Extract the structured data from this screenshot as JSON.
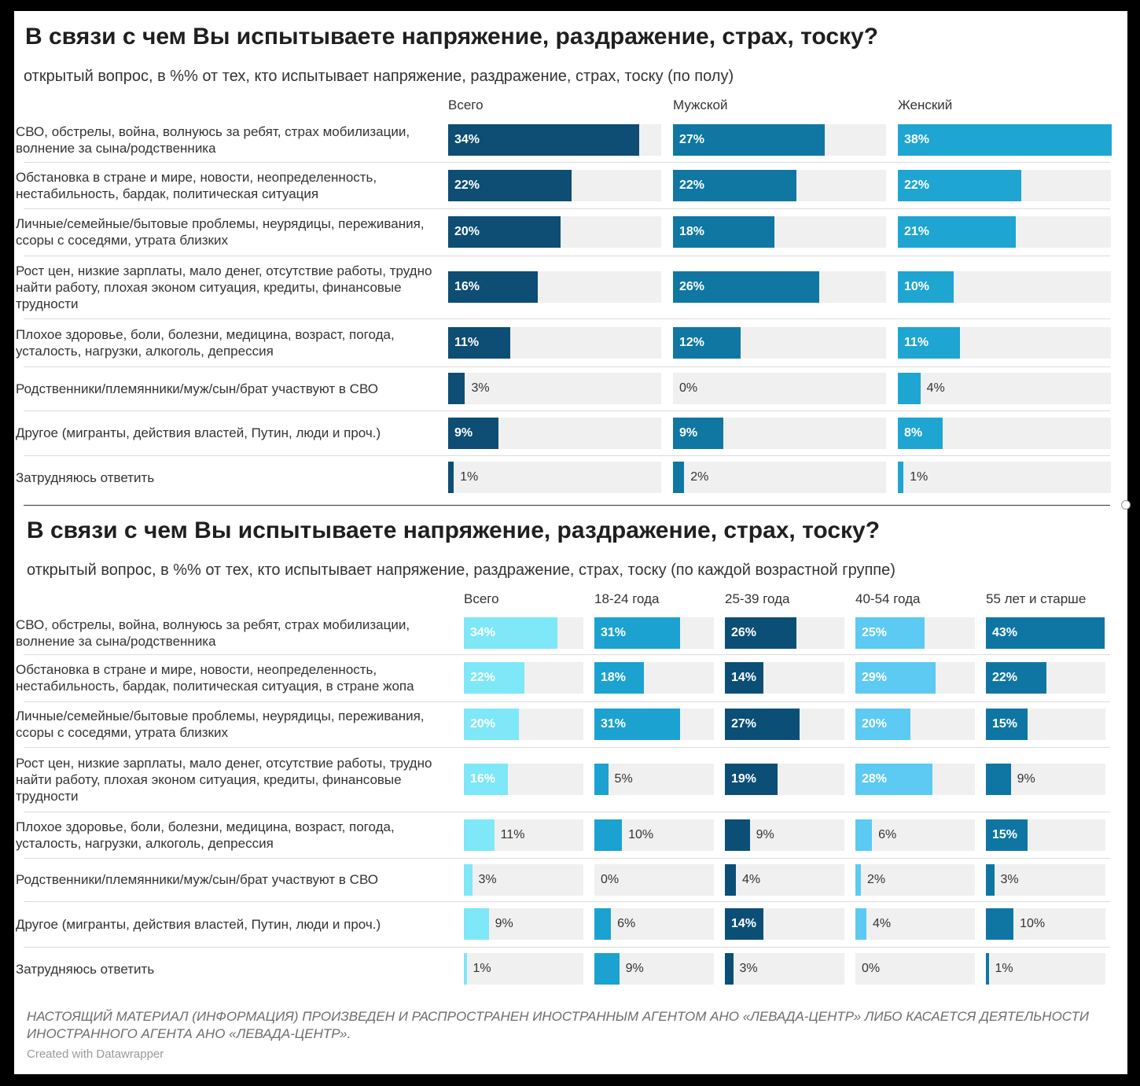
{
  "chart_data": [
    {
      "type": "bar",
      "title": "В связи с чем Вы испытываете напряжение, раздражение, страх, тоску?",
      "subtitle": "открытый вопрос, в %% от тех, кто испытывает напряжение, раздражение, страх, тоску (по полу)",
      "categories": [
        "СВО, обстрелы, война, волнуюсь за ребят, страх мобилизации, волнение за сына/родственника",
        "Обстановка в стране и мире, новости, неопределенность, нестабильность, бардак, политическая ситуация",
        "Личные/семейные/бытовые проблемы, неурядицы, переживания, ссоры с соседями, утрата близких",
        "Рост цен, низкие зарплаты, мало денег, отсутствие работы, трудно найти работу, плохая эконом ситуация, кредиты, финансовые трудности",
        "Плохое здоровье, боли, болезни, медицина, возраст, погода, усталость, нагрузки, алкоголь, депрессия",
        "Родственники/племянники/муж/сын/брат участвуют в СВО",
        "Другое (мигранты, действия властей, Путин, люди и проч.)",
        "Затрудняюсь ответить"
      ],
      "series": [
        {
          "name": "Всего",
          "color": "#0e4d74",
          "values": [
            34,
            22,
            20,
            16,
            11,
            3,
            9,
            1
          ]
        },
        {
          "name": "Мужской",
          "color": "#0f77a2",
          "values": [
            27,
            22,
            18,
            26,
            12,
            0,
            9,
            2
          ]
        },
        {
          "name": "Женский",
          "color": "#1ea5d2",
          "values": [
            38,
            22,
            21,
            10,
            11,
            4,
            8,
            1
          ]
        }
      ],
      "value_suffix": "%",
      "xlim": [
        0,
        38
      ]
    },
    {
      "type": "bar",
      "title": "В связи с чем Вы испытываете напряжение, раздражение, страх, тоску?",
      "subtitle": "открытый вопрос, в %% от тех, кто испытывает напряжение, раздражение, страх, тоску (по каждой возрастной группе)",
      "categories": [
        "СВО, обстрелы, война, волнуюсь за ребят, страх мобилизации, волнение за сына/родственника",
        "Обстановка в стране и мире, новости, неопределенность, нестабильность, бардак, политическая ситуация, в стране жопа",
        "Личные/семейные/бытовые проблемы, неурядицы, переживания, ссоры с соседями, утрата близких",
        "Рост цен, низкие зарплаты, мало денег, отсутствие работы, трудно найти работу, плохая эконом ситуация, кредиты, финансовые трудности",
        "Плохое здоровье, боли, болезни, медицина, возраст, погода, усталость, нагрузки, алкоголь, депрессия",
        "Родственники/племянники/муж/сын/брат участвуют в СВО",
        "Другое (мигранты, действия властей, Путин, люди и проч.)",
        "Затрудняюсь ответить"
      ],
      "series": [
        {
          "name": "Всего",
          "color": "#7ee7f8",
          "values": [
            34,
            22,
            20,
            16,
            11,
            3,
            9,
            1
          ]
        },
        {
          "name": "18-24 года",
          "color": "#1ba2d0",
          "values": [
            31,
            18,
            31,
            5,
            10,
            0,
            6,
            9
          ]
        },
        {
          "name": "25-39 года",
          "color": "#0b4f77",
          "values": [
            26,
            14,
            27,
            19,
            9,
            4,
            14,
            3
          ]
        },
        {
          "name": "40-54 года",
          "color": "#5ccaf2",
          "values": [
            25,
            29,
            20,
            28,
            6,
            2,
            4,
            0
          ]
        },
        {
          "name": "55 лет и старше",
          "color": "#0f76a3",
          "values": [
            43,
            22,
            15,
            9,
            15,
            3,
            10,
            1
          ]
        }
      ],
      "value_suffix": "%",
      "xlim": [
        0,
        43
      ]
    }
  ],
  "footnote": "НАСТОЯЩИЙ МАТЕРИАЛ (ИНФОРМАЦИЯ) ПРОИЗВЕДЕН И РАСПРОСТРАНЕН ИНОСТРАННЫМ АГЕНТОМ АНО «ЛЕВАДА-ЦЕНТР» ЛИБО КАСАЕТСЯ ДЕЯТЕЛЬНОСТИ ИНОСТРАННОГО АГЕНТА АНО «ЛЕВАДА-ЦЕНТР».",
  "credit": "Created with Datawrapper"
}
